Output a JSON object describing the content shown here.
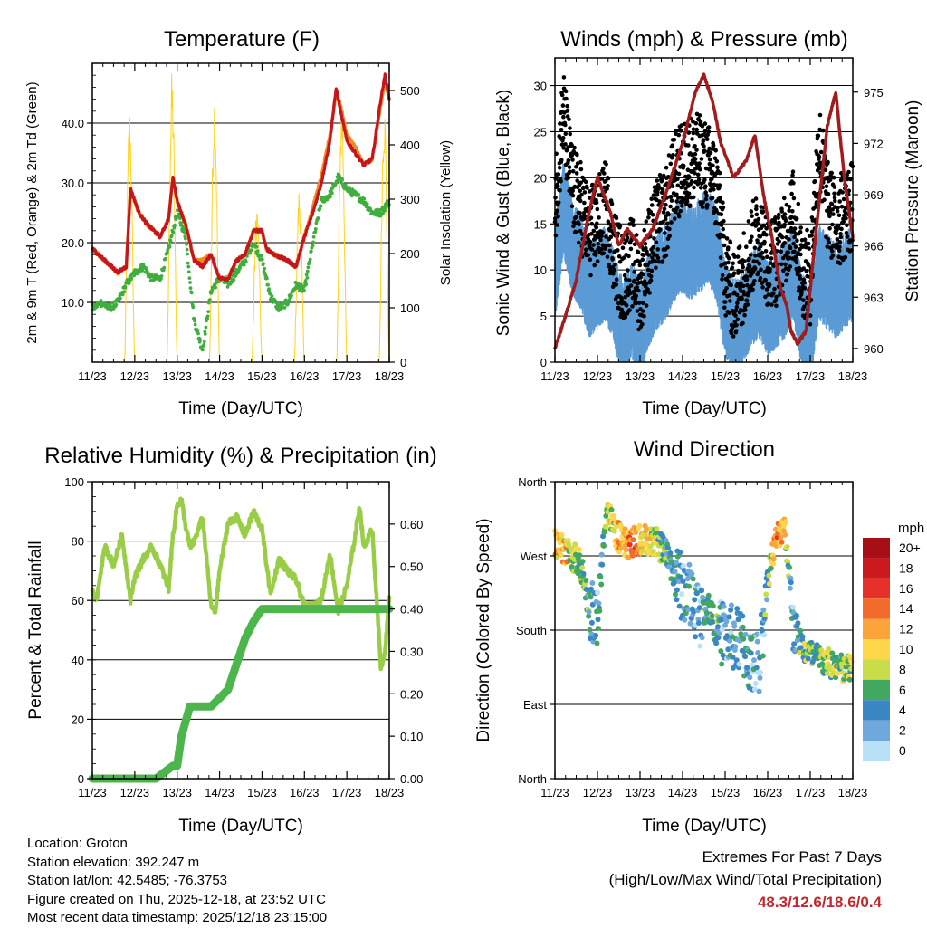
{
  "colors": {
    "temp2m": "#c4161c",
    "temp9m": "#f08a24",
    "dew": "#3fae3f",
    "solar": "#ffd21e",
    "wind": "#5b9bd5",
    "gust": "#000000",
    "pressure": "#a11d1d",
    "rh": "#9acd47",
    "precip": "#4cb64c",
    "grid": "#000000"
  },
  "x_tick_labels": [
    "11/23",
    "12/23",
    "13/23",
    "14/23",
    "15/23",
    "16/23",
    "17/23",
    "18/23"
  ],
  "speed_legend": {
    "title": "mph",
    "labels": [
      "20+",
      "18",
      "16",
      "14",
      "12",
      "10",
      "8",
      "6",
      "4",
      "2",
      "0"
    ],
    "colors": [
      "#a50f15",
      "#cb181d",
      "#e6302a",
      "#f26b2b",
      "#fca43a",
      "#fdd64a",
      "#c9dc4a",
      "#41a85f",
      "#3a87c4",
      "#6fa9dc",
      "#b9e1f5"
    ]
  },
  "chart_data": [
    {
      "type": "line",
      "title": "Temperature (F)",
      "xlabel": "Time (Day/UTC)",
      "ylabel": "2m & 9m T (Red, Orange) & 2m Td (Green)",
      "y2label": "Solar Insolation (Yellow)",
      "x_range": [
        11,
        18
      ],
      "ylim": [
        0,
        50
      ],
      "y_ticks": [
        "10.0",
        "20.0",
        "30.0",
        "40.0"
      ],
      "y2lim": [
        0,
        550
      ],
      "y2_ticks": [
        "0",
        "100",
        "200",
        "300",
        "400",
        "500"
      ],
      "series": [
        {
          "name": "2m T",
          "axis": "left",
          "x": [
            11.0,
            11.3,
            11.6,
            11.8,
            11.9,
            12.0,
            12.1,
            12.3,
            12.6,
            12.8,
            12.9,
            13.0,
            13.2,
            13.4,
            13.6,
            13.8,
            14.0,
            14.2,
            14.4,
            14.6,
            14.8,
            15.0,
            15.1,
            15.3,
            15.6,
            15.8,
            16.0,
            16.2,
            16.4,
            16.6,
            16.75,
            16.85,
            17.0,
            17.2,
            17.4,
            17.6,
            17.8,
            17.9,
            18.0
          ],
          "values": [
            19,
            17,
            15,
            16,
            29,
            27,
            25,
            23,
            21,
            24,
            31,
            27,
            23,
            17,
            16,
            18,
            14,
            14,
            17,
            18,
            22,
            22,
            19,
            18,
            17,
            16,
            21,
            25,
            30,
            37,
            46,
            42,
            37,
            35,
            33,
            34,
            44,
            48,
            44
          ]
        },
        {
          "name": "9m T",
          "axis": "left",
          "x": [
            11.0,
            11.3,
            11.6,
            11.8,
            11.9,
            12.0,
            12.1,
            12.3,
            12.6,
            12.8,
            12.9,
            13.0,
            13.2,
            13.4,
            13.6,
            13.8,
            14.0,
            14.2,
            14.4,
            14.6,
            14.8,
            15.0,
            15.1,
            15.3,
            15.6,
            15.8,
            16.0,
            16.2,
            16.4,
            16.6,
            16.75,
            16.85,
            17.0,
            17.2,
            17.4,
            17.6,
            17.8,
            17.9,
            18.0
          ],
          "values": [
            19,
            17,
            15,
            16,
            29,
            27,
            25,
            23,
            21,
            24,
            31,
            27,
            23,
            17,
            17,
            18,
            14,
            14,
            17,
            18,
            22,
            22,
            19,
            18,
            17,
            16,
            21,
            26,
            31,
            38,
            45,
            43,
            38,
            36,
            33,
            34,
            43,
            47,
            44
          ]
        },
        {
          "name": "2m Td",
          "axis": "left",
          "x": [
            11.0,
            11.2,
            11.4,
            11.6,
            11.8,
            12.0,
            12.2,
            12.4,
            12.6,
            12.8,
            13.0,
            13.2,
            13.4,
            13.6,
            13.8,
            14.0,
            14.2,
            14.4,
            14.6,
            14.8,
            15.0,
            15.2,
            15.4,
            15.6,
            15.8,
            16.0,
            16.2,
            16.4,
            16.6,
            16.8,
            17.0,
            17.2,
            17.4,
            17.6,
            17.8,
            18.0
          ],
          "values": [
            9,
            10,
            9,
            10,
            13,
            15,
            16,
            14,
            14,
            19,
            25,
            21,
            7,
            2,
            12,
            14,
            13,
            15,
            17,
            20,
            17,
            11,
            9,
            10,
            13,
            12,
            20,
            27,
            28,
            31,
            29,
            28,
            27,
            25,
            25,
            27
          ]
        },
        {
          "name": "Solar Insolation",
          "axis": "right",
          "peaks": [
            {
              "day": 11.88,
              "value": 475
            },
            {
              "day": 12.88,
              "value": 540
            },
            {
              "day": 13.88,
              "value": 510
            },
            {
              "day": 14.88,
              "value": 300
            },
            {
              "day": 15.88,
              "value": 330
            },
            {
              "day": 16.88,
              "value": 500
            },
            {
              "day": 17.88,
              "value": 500
            }
          ]
        }
      ]
    },
    {
      "type": "scatter",
      "title": "Winds (mph) & Pressure (mb)",
      "xlabel": "Time (Day/UTC)",
      "ylabel": "Sonic Wind & Gust (Blue, Black)",
      "y2label": "Station Pressure (Maroon)",
      "x_range": [
        11,
        18
      ],
      "ylim": [
        0,
        33
      ],
      "y_ticks": [
        "0",
        "5",
        "10",
        "15",
        "20",
        "25",
        "30"
      ],
      "y2lim": [
        959.2,
        977
      ],
      "y2_ticks": [
        "960",
        "963",
        "966",
        "969",
        "972",
        "975"
      ],
      "series": [
        {
          "name": "Wind",
          "axis": "left",
          "x": [
            11.0,
            11.2,
            11.4,
            11.6,
            11.8,
            12.0,
            12.2,
            12.4,
            12.6,
            12.8,
            13.0,
            13.2,
            13.4,
            13.6,
            13.8,
            14.0,
            14.2,
            14.4,
            14.6,
            14.8,
            15.0,
            15.2,
            15.4,
            15.6,
            15.8,
            16.0,
            16.2,
            16.4,
            16.6,
            16.8,
            17.0,
            17.2,
            17.4,
            17.6,
            17.8,
            18.0
          ],
          "values": [
            10,
            17,
            13,
            11,
            8,
            9,
            10,
            7,
            4,
            6,
            4,
            7,
            9,
            10,
            12,
            13,
            12,
            13,
            14,
            12,
            6,
            4,
            5,
            7,
            8,
            6,
            7,
            8,
            10,
            5,
            3,
            10,
            9,
            8,
            9,
            10
          ]
        },
        {
          "name": "Gust",
          "axis": "left",
          "x": [
            11.0,
            11.2,
            11.4,
            11.6,
            11.8,
            12.0,
            12.2,
            12.4,
            12.6,
            12.8,
            13.0,
            13.2,
            13.4,
            13.6,
            13.8,
            14.0,
            14.2,
            14.4,
            14.6,
            14.8,
            15.0,
            15.2,
            15.4,
            15.6,
            15.8,
            16.0,
            16.2,
            16.4,
            16.6,
            16.8,
            17.0,
            17.2,
            17.4,
            17.6,
            17.8,
            18.0
          ],
          "values": [
            17,
            27,
            19,
            17,
            14,
            15,
            17,
            12,
            9,
            11,
            8,
            12,
            15,
            16,
            20,
            21,
            22,
            22,
            21,
            19,
            10,
            7,
            9,
            12,
            14,
            11,
            11,
            13,
            16,
            10,
            9,
            24,
            17,
            15,
            16,
            17
          ]
        },
        {
          "name": "Station Pressure",
          "axis": "right",
          "x": [
            11.0,
            11.2,
            11.5,
            11.8,
            12.0,
            12.3,
            12.5,
            12.7,
            13.0,
            13.3,
            13.6,
            14.0,
            14.3,
            14.5,
            14.7,
            14.9,
            15.2,
            15.5,
            15.7,
            15.9,
            16.1,
            16.3,
            16.45,
            16.55,
            16.7,
            16.9,
            17.1,
            17.4,
            17.6,
            17.8,
            18.0
          ],
          "values": [
            960.0,
            961.5,
            964,
            968,
            970,
            968,
            966,
            967,
            966,
            967,
            969,
            972,
            975,
            976,
            974.5,
            972,
            970,
            971,
            972.5,
            969,
            966.5,
            963.5,
            962.5,
            961,
            960.3,
            961,
            966,
            973,
            975,
            970,
            966.5
          ]
        }
      ]
    },
    {
      "type": "line",
      "title": "Relative Humidity (%) & Precipitation (in)",
      "xlabel": "Time (Day/UTC)",
      "ylabel": "Percent & Total Rainfall",
      "x_range": [
        11,
        18
      ],
      "ylim": [
        0,
        100
      ],
      "y_ticks": [
        "0",
        "20",
        "40",
        "60",
        "80",
        "100"
      ],
      "y2lim": [
        0,
        0.7
      ],
      "y2_ticks": [
        "0.00",
        "0.10",
        "0.20",
        "0.30",
        "0.40",
        "0.50",
        "0.60"
      ],
      "series": [
        {
          "name": "Relative Humidity",
          "axis": "left",
          "x": [
            11.0,
            11.1,
            11.2,
            11.3,
            11.5,
            11.7,
            11.9,
            12.0,
            12.2,
            12.4,
            12.6,
            12.8,
            12.9,
            13.0,
            13.1,
            13.2,
            13.3,
            13.4,
            13.6,
            13.8,
            13.9,
            14.0,
            14.2,
            14.4,
            14.6,
            14.8,
            15.0,
            15.2,
            15.4,
            15.6,
            15.8,
            16.0,
            16.2,
            16.4,
            16.6,
            16.8,
            17.0,
            17.2,
            17.3,
            17.4,
            17.6,
            17.8,
            17.9,
            18.0
          ],
          "values": [
            64,
            60,
            70,
            78,
            72,
            82,
            60,
            68,
            74,
            78,
            72,
            64,
            82,
            92,
            94,
            85,
            78,
            80,
            88,
            58,
            56,
            70,
            86,
            88,
            82,
            90,
            84,
            62,
            74,
            70,
            67,
            58,
            58,
            60,
            76,
            56,
            65,
            82,
            92,
            78,
            84,
            38,
            42,
            62
          ]
        },
        {
          "name": "Total Precipitation",
          "axis": "right",
          "x": [
            11.0,
            12.5,
            12.9,
            13.0,
            13.1,
            13.3,
            13.5,
            13.8,
            14.0,
            14.2,
            14.4,
            14.6,
            14.8,
            15.0,
            18.0
          ],
          "values": [
            0.0,
            0.0,
            0.03,
            0.03,
            0.1,
            0.17,
            0.17,
            0.17,
            0.19,
            0.21,
            0.27,
            0.33,
            0.37,
            0.4,
            0.4
          ]
        }
      ]
    },
    {
      "type": "scatter",
      "title": "Wind Direction",
      "xlabel": "Time (Day/UTC)",
      "ylabel": "Direction (Colored By Speed)",
      "x_range": [
        11,
        18
      ],
      "ylim": [
        0,
        360
      ],
      "y_tick_values": [
        0,
        90,
        180,
        270,
        360
      ],
      "y_ticks": [
        "North",
        "East",
        "South",
        "West",
        "North"
      ],
      "colorbar_unit": "mph",
      "series": [
        {
          "name": "Direction",
          "x": [
            11.0,
            11.2,
            11.4,
            11.6,
            11.8,
            12.0,
            12.2,
            12.4,
            12.6,
            12.8,
            13.0,
            13.2,
            13.4,
            13.6,
            13.8,
            14.0,
            14.2,
            14.4,
            14.6,
            14.8,
            15.0,
            15.2,
            15.4,
            15.6,
            15.8,
            16.0,
            16.2,
            16.4,
            16.6,
            16.8,
            17.0,
            17.2,
            17.4,
            17.6,
            17.8,
            18.0
          ],
          "values": [
            285,
            280,
            270,
            260,
            205,
            190,
            330,
            300,
            285,
            285,
            290,
            290,
            285,
            275,
            250,
            230,
            220,
            200,
            210,
            180,
            175,
            170,
            165,
            140,
            140,
            245,
            290,
            310,
            195,
            160,
            150,
            145,
            140,
            138,
            130,
            135
          ],
          "speeds": [
            12,
            13,
            9,
            8,
            5,
            4,
            8,
            11,
            13,
            15,
            12,
            10,
            9,
            6,
            5,
            4,
            5,
            4,
            7,
            6,
            3,
            4,
            5,
            4,
            3,
            6,
            14,
            10,
            4,
            8,
            8,
            7,
            9,
            8,
            8,
            9
          ]
        }
      ]
    }
  ],
  "info": {
    "location": "Location: Groton",
    "elevation": "Station elevation: 392.247 m",
    "latlon": "Station lat/lon: 42.5485; -76.3753",
    "created": "Figure created on Thu, 2025-12-18, at 23:52 UTC",
    "recent": "Most recent data timestamp: 2025/12/18 23:15:00"
  },
  "extremes": {
    "line1": "Extremes For Past 7 Days",
    "line2": "(High/Low/Max Wind/Total Precipitation)",
    "values": "48.3/12.6/18.6/0.4"
  }
}
